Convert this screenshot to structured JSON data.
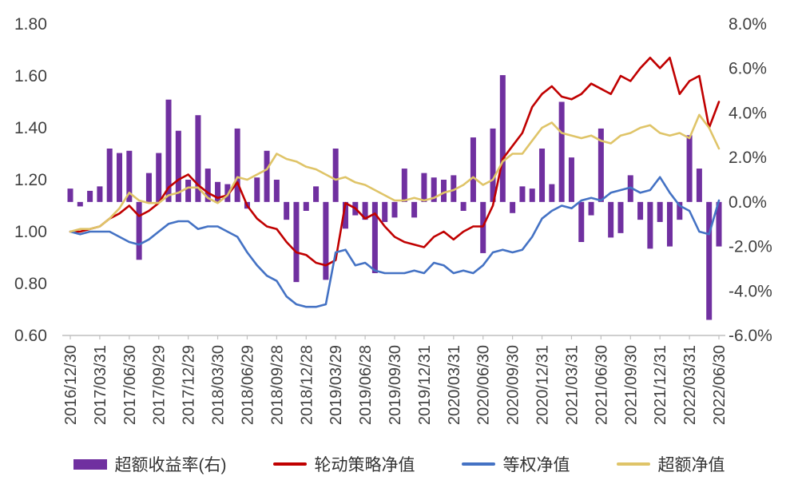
{
  "chart_data": {
    "type": "combo",
    "title": "",
    "x_tick_labels": [
      "2016/12/30",
      "2017/03/31",
      "2017/06/30",
      "2017/09/29",
      "2017/12/29",
      "2018/03/30",
      "2018/06/29",
      "2018/09/28",
      "2018/12/28",
      "2019/03/29",
      "2019/06/28",
      "2019/09/30",
      "2019/12/31",
      "2020/03/31",
      "2020/06/30",
      "2020/09/30",
      "2020/12/31",
      "2021/03/31",
      "2021/06/30",
      "2021/09/30",
      "2021/12/31",
      "2022/03/31",
      "2022/06/30"
    ],
    "x_label_every_n_points": 3,
    "points_count": 67,
    "left_axis": {
      "min": 0.6,
      "max": 1.8,
      "ticks": [
        "1.80",
        "1.60",
        "1.40",
        "1.20",
        "1.00",
        "0.80",
        "0.60"
      ]
    },
    "right_axis": {
      "min": -6.0,
      "max": 8.0,
      "ticks": [
        "8.0%",
        "6.0%",
        "4.0%",
        "2.0%",
        "0.0%",
        "-2.0%",
        "-4.0%",
        "-6.0%"
      ]
    },
    "bar_series": {
      "name": "超额收益率(右)",
      "axis": "right",
      "color": "#7030A0",
      "values": [
        0.6,
        -0.2,
        0.5,
        0.7,
        2.4,
        2.2,
        2.3,
        -2.6,
        1.3,
        2.2,
        4.6,
        3.2,
        1.0,
        3.9,
        1.5,
        0.9,
        0.8,
        3.3,
        -0.3,
        1.1,
        2.3,
        1.0,
        -0.8,
        -3.6,
        -0.4,
        0.7,
        -3.5,
        2.4,
        -1.2,
        -0.6,
        -0.8,
        -3.2,
        -0.9,
        -0.7,
        1.5,
        -0.7,
        1.3,
        1.1,
        1.0,
        1.2,
        -0.4,
        2.9,
        -2.3,
        3.3,
        5.7,
        -0.5,
        0.7,
        0.6,
        2.4,
        0.8,
        4.5,
        2.0,
        -1.8,
        -0.6,
        3.3,
        -1.6,
        -1.4,
        1.2,
        -0.8,
        -2.1,
        -0.9,
        -2.0,
        -0.8,
        3.0,
        1.5,
        -5.3,
        -2.0
      ]
    },
    "line_series": [
      {
        "name": "轮动策略净值",
        "axis": "left",
        "color": "#C00000",
        "values": [
          1.0,
          1.0,
          1.01,
          1.02,
          1.05,
          1.07,
          1.1,
          1.06,
          1.08,
          1.11,
          1.17,
          1.2,
          1.22,
          1.18,
          1.15,
          1.13,
          1.14,
          1.19,
          1.1,
          1.05,
          1.02,
          1.01,
          0.96,
          0.92,
          0.91,
          0.88,
          0.87,
          0.89,
          1.11,
          1.09,
          1.05,
          1.07,
          1.02,
          0.98,
          0.96,
          0.95,
          0.94,
          0.98,
          1.0,
          0.97,
          1.0,
          1.02,
          1.02,
          1.1,
          1.28,
          1.33,
          1.38,
          1.48,
          1.53,
          1.56,
          1.52,
          1.51,
          1.53,
          1.57,
          1.55,
          1.53,
          1.6,
          1.58,
          1.63,
          1.67,
          1.63,
          1.67,
          1.53,
          1.58,
          1.6,
          1.4,
          1.5
        ]
      },
      {
        "name": "等权净值",
        "axis": "left",
        "color": "#4472C4",
        "values": [
          1.0,
          0.99,
          1.0,
          1.0,
          1.0,
          0.98,
          0.96,
          0.95,
          0.97,
          1.0,
          1.03,
          1.04,
          1.04,
          1.01,
          1.02,
          1.02,
          1.0,
          0.98,
          0.92,
          0.87,
          0.83,
          0.81,
          0.75,
          0.72,
          0.71,
          0.71,
          0.72,
          0.92,
          0.93,
          0.87,
          0.88,
          0.85,
          0.84,
          0.84,
          0.84,
          0.85,
          0.84,
          0.88,
          0.87,
          0.84,
          0.85,
          0.84,
          0.87,
          0.92,
          0.93,
          0.92,
          0.93,
          0.98,
          1.05,
          1.08,
          1.1,
          1.09,
          1.12,
          1.13,
          1.12,
          1.15,
          1.16,
          1.17,
          1.15,
          1.16,
          1.21,
          1.15,
          1.1,
          1.08,
          1.0,
          0.99,
          1.12
        ]
      },
      {
        "name": "超额净值",
        "axis": "left",
        "color": "#DFC468",
        "values": [
          1.0,
          1.01,
          1.01,
          1.02,
          1.05,
          1.09,
          1.15,
          1.12,
          1.11,
          1.11,
          1.14,
          1.15,
          1.17,
          1.17,
          1.13,
          1.11,
          1.14,
          1.21,
          1.2,
          1.22,
          1.24,
          1.3,
          1.28,
          1.27,
          1.25,
          1.24,
          1.22,
          1.2,
          1.21,
          1.19,
          1.18,
          1.16,
          1.14,
          1.12,
          1.12,
          1.13,
          1.12,
          1.13,
          1.15,
          1.16,
          1.18,
          1.21,
          1.18,
          1.2,
          1.27,
          1.3,
          1.3,
          1.35,
          1.4,
          1.42,
          1.38,
          1.37,
          1.36,
          1.37,
          1.35,
          1.34,
          1.37,
          1.38,
          1.4,
          1.41,
          1.38,
          1.37,
          1.38,
          1.36,
          1.45,
          1.4,
          1.32
        ]
      }
    ],
    "legend": [
      "超额收益率(右)",
      "轮动策略净值",
      "等权净值",
      "超额净值"
    ],
    "legend_position": "bottom",
    "grid": "off"
  },
  "colors": {
    "background": "#FFFFFF",
    "axis_text": "#404040",
    "axis_line": "#BFBFBF",
    "bar": "#7030A0",
    "line_red": "#C00000",
    "line_blue": "#4472C4",
    "line_yellow": "#DFC468"
  }
}
